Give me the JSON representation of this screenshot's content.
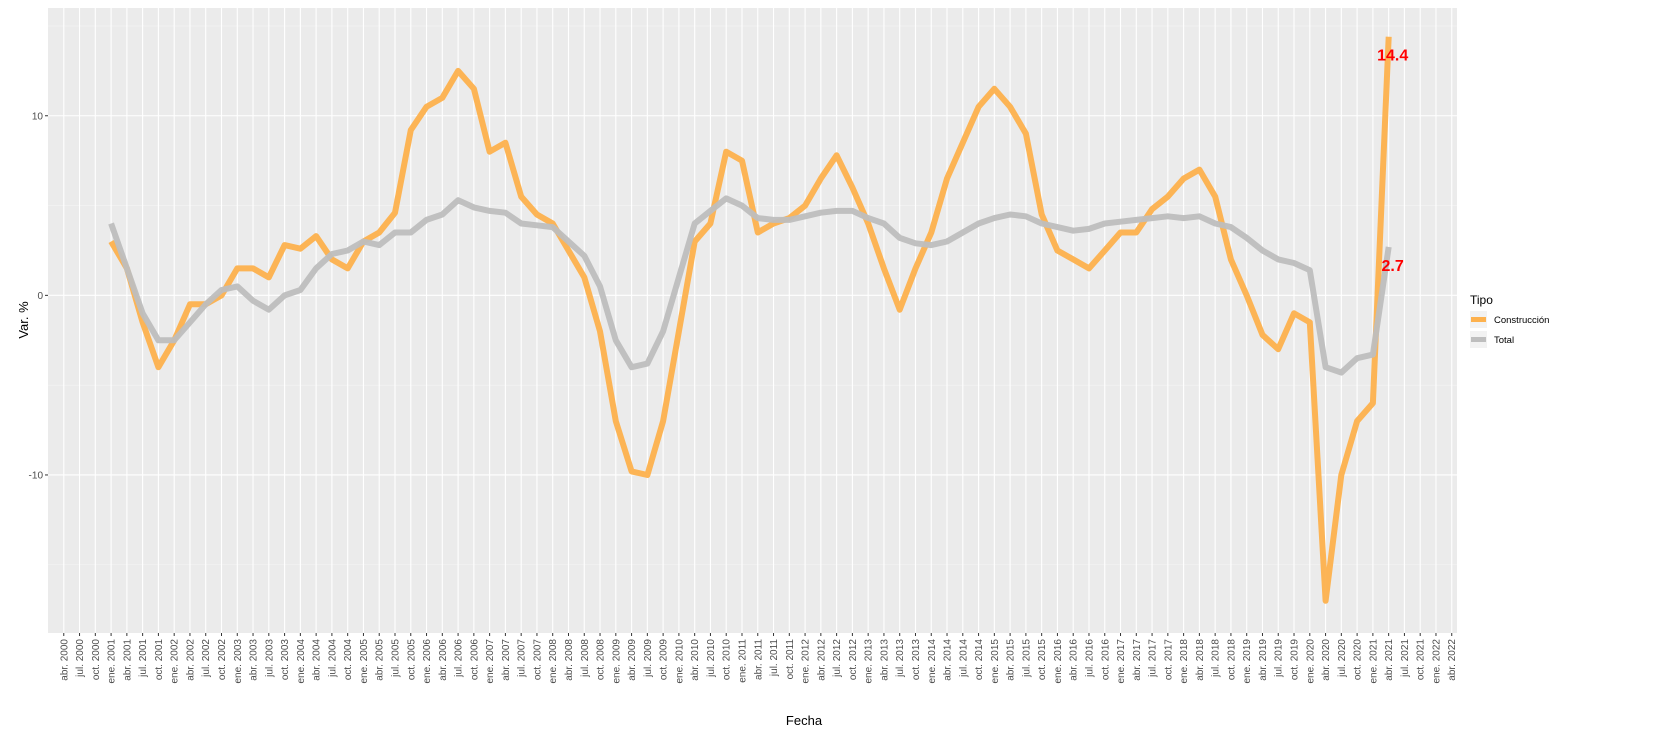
{
  "chart_data": {
    "type": "line",
    "x_label": "Fecha",
    "y_label": "Var. %",
    "legend_title": "Tipo",
    "legend": "right",
    "grid": true,
    "xlim": [
      "2000-01",
      "2022-05"
    ],
    "ylim": [
      -18.8,
      16
    ],
    "yticks": [
      -10,
      0,
      10
    ],
    "y_minor_ticks": [
      -15,
      -5,
      5,
      15
    ],
    "xticks": [
      {
        "value": "2000-04",
        "label": "abr. 2000"
      },
      {
        "value": "2000-07",
        "label": "jul. 2000"
      },
      {
        "value": "2000-10",
        "label": "oct. 2000"
      },
      {
        "value": "2001-01",
        "label": "ene. 2001"
      },
      {
        "value": "2001-04",
        "label": "abr. 2001"
      },
      {
        "value": "2001-07",
        "label": "jul. 2001"
      },
      {
        "value": "2001-10",
        "label": "oct. 2001"
      },
      {
        "value": "2002-01",
        "label": "ene. 2002"
      },
      {
        "value": "2002-04",
        "label": "abr. 2002"
      },
      {
        "value": "2002-07",
        "label": "jul. 2002"
      },
      {
        "value": "2002-10",
        "label": "oct. 2002"
      },
      {
        "value": "2003-01",
        "label": "ene. 2003"
      },
      {
        "value": "2003-04",
        "label": "abr. 2003"
      },
      {
        "value": "2003-07",
        "label": "jul. 2003"
      },
      {
        "value": "2003-10",
        "label": "oct. 2003"
      },
      {
        "value": "2004-01",
        "label": "ene. 2004"
      },
      {
        "value": "2004-04",
        "label": "abr. 2004"
      },
      {
        "value": "2004-07",
        "label": "jul. 2004"
      },
      {
        "value": "2004-10",
        "label": "oct. 2004"
      },
      {
        "value": "2005-01",
        "label": "ene. 2005"
      },
      {
        "value": "2005-04",
        "label": "abr. 2005"
      },
      {
        "value": "2005-07",
        "label": "jul. 2005"
      },
      {
        "value": "2005-10",
        "label": "oct. 2005"
      },
      {
        "value": "2006-01",
        "label": "ene. 2006"
      },
      {
        "value": "2006-04",
        "label": "abr. 2006"
      },
      {
        "value": "2006-07",
        "label": "jul. 2006"
      },
      {
        "value": "2006-10",
        "label": "oct. 2006"
      },
      {
        "value": "2007-01",
        "label": "ene. 2007"
      },
      {
        "value": "2007-04",
        "label": "abr. 2007"
      },
      {
        "value": "2007-07",
        "label": "jul. 2007"
      },
      {
        "value": "2007-10",
        "label": "oct. 2007"
      },
      {
        "value": "2008-01",
        "label": "ene. 2008"
      },
      {
        "value": "2008-04",
        "label": "abr. 2008"
      },
      {
        "value": "2008-07",
        "label": "jul. 2008"
      },
      {
        "value": "2008-10",
        "label": "oct. 2008"
      },
      {
        "value": "2009-01",
        "label": "ene. 2009"
      },
      {
        "value": "2009-04",
        "label": "abr. 2009"
      },
      {
        "value": "2009-07",
        "label": "jul. 2009"
      },
      {
        "value": "2009-10",
        "label": "oct. 2009"
      },
      {
        "value": "2010-01",
        "label": "ene. 2010"
      },
      {
        "value": "2010-04",
        "label": "abr. 2010"
      },
      {
        "value": "2010-07",
        "label": "jul. 2010"
      },
      {
        "value": "2010-10",
        "label": "oct. 2010"
      },
      {
        "value": "2011-01",
        "label": "ene. 2011"
      },
      {
        "value": "2011-04",
        "label": "abr. 2011"
      },
      {
        "value": "2011-07",
        "label": "jul. 2011"
      },
      {
        "value": "2011-10",
        "label": "oct. 2011"
      },
      {
        "value": "2012-01",
        "label": "ene. 2012"
      },
      {
        "value": "2012-04",
        "label": "abr. 2012"
      },
      {
        "value": "2012-07",
        "label": "jul. 2012"
      },
      {
        "value": "2012-10",
        "label": "oct. 2012"
      },
      {
        "value": "2013-01",
        "label": "ene. 2013"
      },
      {
        "value": "2013-04",
        "label": "abr. 2013"
      },
      {
        "value": "2013-07",
        "label": "jul. 2013"
      },
      {
        "value": "2013-10",
        "label": "oct. 2013"
      },
      {
        "value": "2014-01",
        "label": "ene. 2014"
      },
      {
        "value": "2014-04",
        "label": "abr. 2014"
      },
      {
        "value": "2014-07",
        "label": "jul. 2014"
      },
      {
        "value": "2014-10",
        "label": "oct. 2014"
      },
      {
        "value": "2015-01",
        "label": "ene. 2015"
      },
      {
        "value": "2015-04",
        "label": "abr. 2015"
      },
      {
        "value": "2015-07",
        "label": "jul. 2015"
      },
      {
        "value": "2015-10",
        "label": "oct. 2015"
      },
      {
        "value": "2016-01",
        "label": "ene. 2016"
      },
      {
        "value": "2016-04",
        "label": "abr. 2016"
      },
      {
        "value": "2016-07",
        "label": "jul. 2016"
      },
      {
        "value": "2016-10",
        "label": "oct. 2016"
      },
      {
        "value": "2017-01",
        "label": "ene. 2017"
      },
      {
        "value": "2017-04",
        "label": "abr. 2017"
      },
      {
        "value": "2017-07",
        "label": "jul. 2017"
      },
      {
        "value": "2017-10",
        "label": "oct. 2017"
      },
      {
        "value": "2018-01",
        "label": "ene. 2018"
      },
      {
        "value": "2018-04",
        "label": "abr. 2018"
      },
      {
        "value": "2018-07",
        "label": "jul. 2018"
      },
      {
        "value": "2018-10",
        "label": "oct. 2018"
      },
      {
        "value": "2019-01",
        "label": "ene. 2019"
      },
      {
        "value": "2019-04",
        "label": "abr. 2019"
      },
      {
        "value": "2019-07",
        "label": "jul. 2019"
      },
      {
        "value": "2019-10",
        "label": "oct. 2019"
      },
      {
        "value": "2020-01",
        "label": "ene. 2020"
      },
      {
        "value": "2020-04",
        "label": "abr. 2020"
      },
      {
        "value": "2020-07",
        "label": "jul. 2020"
      },
      {
        "value": "2020-10",
        "label": "oct. 2020"
      },
      {
        "value": "2021-01",
        "label": "ene. 2021"
      },
      {
        "value": "2021-04",
        "label": "abr. 2021"
      },
      {
        "value": "2021-07",
        "label": "jul. 2021"
      },
      {
        "value": "2021-10",
        "label": "oct. 2021"
      },
      {
        "value": "2022-01",
        "label": "ene. 2022"
      },
      {
        "value": "2022-04",
        "label": "abr. 2022"
      }
    ],
    "x": [
      "2001-01",
      "2001-04",
      "2001-07",
      "2001-10",
      "2002-01",
      "2002-04",
      "2002-07",
      "2002-10",
      "2003-01",
      "2003-04",
      "2003-07",
      "2003-10",
      "2004-01",
      "2004-04",
      "2004-07",
      "2004-10",
      "2005-01",
      "2005-04",
      "2005-07",
      "2005-10",
      "2006-01",
      "2006-04",
      "2006-07",
      "2006-10",
      "2007-01",
      "2007-04",
      "2007-07",
      "2007-10",
      "2008-01",
      "2008-04",
      "2008-07",
      "2008-10",
      "2009-01",
      "2009-04",
      "2009-07",
      "2009-10",
      "2010-01",
      "2010-04",
      "2010-07",
      "2010-10",
      "2011-01",
      "2011-04",
      "2011-07",
      "2011-10",
      "2012-01",
      "2012-04",
      "2012-07",
      "2012-10",
      "2013-01",
      "2013-04",
      "2013-07",
      "2013-10",
      "2014-01",
      "2014-04",
      "2014-07",
      "2014-10",
      "2015-01",
      "2015-04",
      "2015-07",
      "2015-10",
      "2016-01",
      "2016-04",
      "2016-07",
      "2016-10",
      "2017-01",
      "2017-04",
      "2017-07",
      "2017-10",
      "2018-01",
      "2018-04",
      "2018-07",
      "2018-10",
      "2019-01",
      "2019-04",
      "2019-07",
      "2019-10",
      "2020-01",
      "2020-04",
      "2020-07",
      "2020-10",
      "2021-01",
      "2021-04"
    ],
    "series": [
      {
        "name": "Construcción",
        "color": "#FDB14D",
        "values": [
          3.0,
          1.5,
          -1.5,
          -4.0,
          -2.5,
          -0.5,
          -0.5,
          0,
          1.5,
          1.5,
          1.0,
          2.8,
          2.6,
          3.3,
          2.0,
          1.5,
          3.0,
          3.5,
          4.6,
          9.2,
          10.5,
          11.0,
          12.5,
          11.5,
          8.0,
          8.5,
          5.5,
          4.5,
          4.0,
          2.5,
          1.0,
          -2.0,
          -7.0,
          -9.8,
          -10.0,
          -7.0,
          -2.0,
          3.0,
          4.0,
          8.0,
          7.5,
          3.5,
          4.0,
          4.3,
          5.0,
          6.5,
          7.8,
          6.0,
          4.0,
          1.5,
          -0.8,
          1.5,
          3.5,
          6.5,
          8.5,
          10.5,
          11.5,
          10.5,
          9.0,
          4.5,
          2.5,
          2.0,
          1.5,
          2.5,
          3.5,
          3.5,
          4.8,
          5.5,
          6.5,
          7.0,
          5.5,
          2.0,
          0,
          -2.2,
          -3.0,
          -1.0,
          -1.5,
          -17.0,
          -10.0,
          -7.0,
          -6.0,
          14.4
        ]
      },
      {
        "name": "Total",
        "color": "#BEBEBE",
        "values": [
          4.0,
          1.5,
          -1.0,
          -2.5,
          -2.5,
          -1.5,
          -0.5,
          0.3,
          0.5,
          -0.3,
          -0.8,
          0,
          0.3,
          1.5,
          2.3,
          2.5,
          3.0,
          2.8,
          3.5,
          3.5,
          4.2,
          4.5,
          5.3,
          4.9,
          4.7,
          4.6,
          4.0,
          3.9,
          3.8,
          3.0,
          2.2,
          0.5,
          -2.5,
          -4.0,
          -3.8,
          -2.0,
          1.0,
          4.0,
          4.7,
          5.4,
          5.0,
          4.3,
          4.2,
          4.2,
          4.4,
          4.6,
          4.7,
          4.7,
          4.3,
          4.0,
          3.2,
          2.9,
          2.8,
          3.0,
          3.5,
          4.0,
          4.3,
          4.5,
          4.4,
          4.0,
          3.8,
          3.6,
          3.7,
          4.0,
          4.1,
          4.2,
          4.3,
          4.4,
          4.3,
          4.4,
          4.0,
          3.8,
          3.2,
          2.5,
          2.0,
          1.8,
          1.4,
          -4.0,
          -4.3,
          -3.5,
          -3.3,
          2.7
        ]
      }
    ],
    "annotations": [
      {
        "x": "2021-04",
        "y": 14.4,
        "color": "#FF0000"
      },
      {
        "x": "2021-04",
        "y": 2.7,
        "color": "#FF0000"
      }
    ]
  }
}
